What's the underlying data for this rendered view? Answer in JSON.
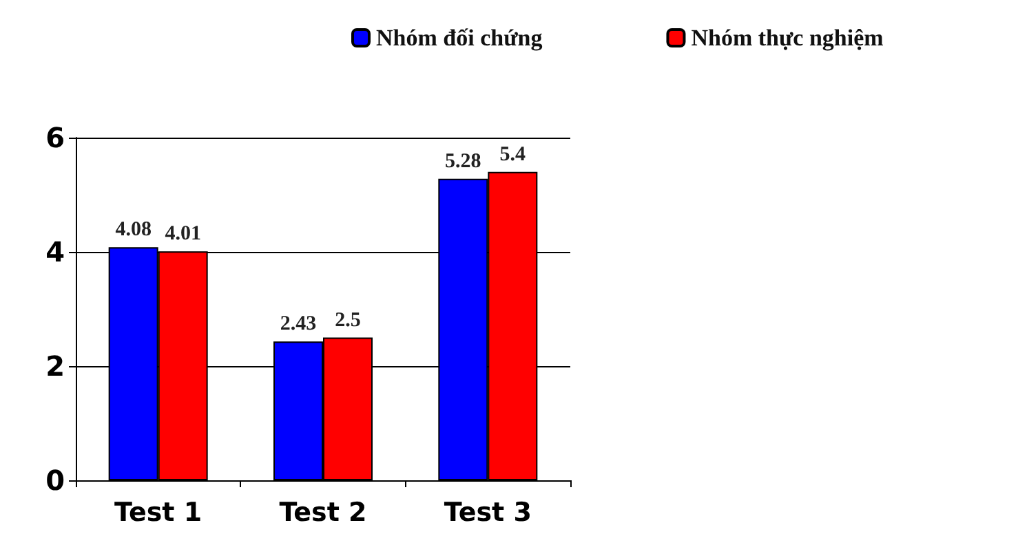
{
  "chart_data": {
    "type": "bar",
    "categories": [
      "Test 1",
      "Test 2",
      "Test 3"
    ],
    "series": [
      {
        "name": "Nhóm đối chứng",
        "color": "#0000ff",
        "values": [
          4.08,
          2.43,
          5.28
        ]
      },
      {
        "name": "Nhóm thực nghiệm",
        "color": "#ff0000",
        "values": [
          4.01,
          2.5,
          5.4
        ]
      }
    ],
    "ylim": [
      0,
      6
    ],
    "yticks": [
      0,
      2,
      4,
      6
    ],
    "grid": "y",
    "legend": "top",
    "data_labels": true
  }
}
